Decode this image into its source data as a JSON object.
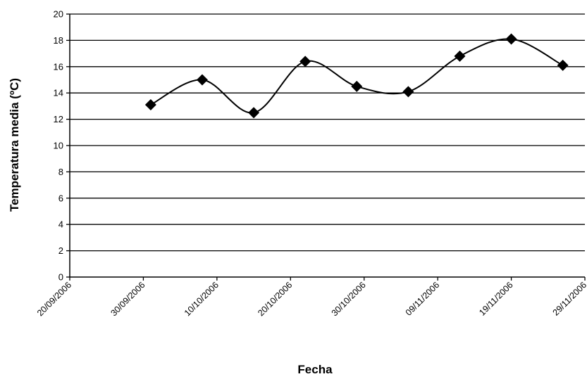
{
  "chart_data": {
    "type": "line",
    "title": "",
    "xlabel": "Fecha",
    "ylabel": "Temperatura media (ºC)",
    "x_ticks": [
      "20/09/2006",
      "30/09/2006",
      "10/10/2006",
      "20/10/2006",
      "30/10/2006",
      "09/11/2006",
      "19/11/2006",
      "29/11/2006"
    ],
    "xlim": [
      "2006-09-20",
      "2006-11-29"
    ],
    "ylim": [
      0,
      20
    ],
    "y_ticks": [
      0,
      2,
      4,
      6,
      8,
      10,
      12,
      14,
      16,
      18,
      20
    ],
    "grid": "horizontal",
    "legend": "none",
    "smooth": true,
    "series": [
      {
        "marker": "diamond",
        "color": "#000000",
        "points": [
          {
            "x": "2006-10-01",
            "y": 13.1
          },
          {
            "x": "2006-10-08",
            "y": 15.0
          },
          {
            "x": "2006-10-15",
            "y": 12.5
          },
          {
            "x": "2006-10-22",
            "y": 16.4
          },
          {
            "x": "2006-10-29",
            "y": 14.5
          },
          {
            "x": "2006-11-05",
            "y": 14.1
          },
          {
            "x": "2006-11-12",
            "y": 16.8
          },
          {
            "x": "2006-11-19",
            "y": 18.1
          },
          {
            "x": "2006-11-26",
            "y": 16.1
          }
        ]
      }
    ]
  }
}
